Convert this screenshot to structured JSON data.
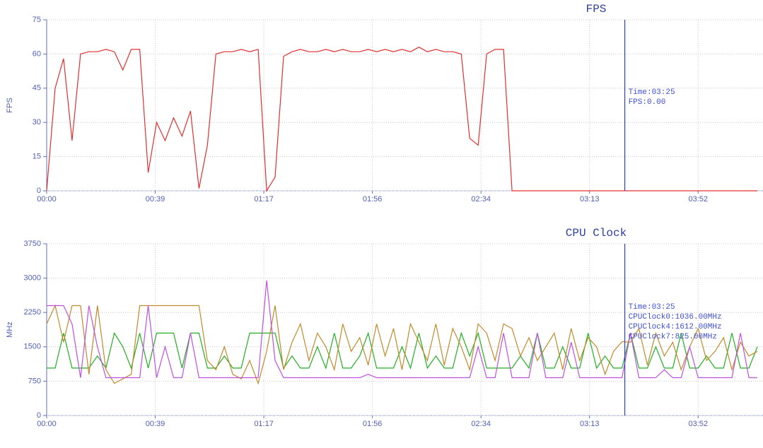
{
  "chart_data": [
    {
      "type": "line",
      "title": "FPS",
      "ylabel": "FPS",
      "x": [
        0,
        3,
        6,
        9,
        12,
        15,
        18,
        21,
        24,
        27,
        30,
        33,
        36,
        39,
        42,
        45,
        48,
        51,
        54,
        57,
        60,
        63,
        66,
        69,
        72,
        75,
        78,
        81,
        84,
        87,
        90,
        93,
        96,
        99,
        102,
        105,
        108,
        111,
        114,
        117,
        120,
        123,
        126,
        129,
        132,
        135,
        138,
        141,
        144,
        147,
        150,
        153,
        156,
        159,
        162,
        165,
        168,
        171,
        174,
        177,
        180,
        183,
        186,
        189,
        192,
        195,
        198,
        201,
        204,
        207,
        210,
        213,
        216,
        219,
        222,
        225,
        228,
        231,
        234,
        237,
        240,
        243,
        246,
        249,
        252
      ],
      "series": [
        {
          "color": "#e03030",
          "values": [
            0,
            45,
            58,
            22,
            60,
            61,
            61,
            62,
            61,
            53,
            62,
            62,
            8,
            30,
            22,
            32,
            24,
            35,
            1,
            20,
            60,
            61,
            61,
            62,
            61,
            62,
            0,
            6,
            59,
            61,
            62,
            61,
            61,
            62,
            61,
            62,
            61,
            61,
            62,
            61,
            62,
            61,
            62,
            61,
            63,
            61,
            62,
            61,
            61,
            60,
            23,
            20,
            60,
            62,
            62,
            0,
            0,
            0,
            0,
            0,
            0,
            0,
            0,
            0,
            0,
            0,
            0,
            0,
            0,
            0,
            0,
            0,
            0,
            0,
            0,
            0,
            0,
            0,
            0,
            0,
            0,
            0,
            0,
            0,
            0
          ]
        }
      ],
      "xlim": [
        0,
        254
      ],
      "ylim": [
        0,
        75
      ],
      "xticks": [
        {
          "value": 0,
          "label": "00:00"
        },
        {
          "value": 38.5,
          "label": "00:39"
        },
        {
          "value": 77,
          "label": "01:17"
        },
        {
          "value": 115.5,
          "label": "01:56"
        },
        {
          "value": 154,
          "label": "02:34"
        },
        {
          "value": 192.5,
          "label": "03:13"
        },
        {
          "value": 231,
          "label": "03:52"
        }
      ],
      "yticks": [
        0,
        15,
        30,
        45,
        60,
        75
      ],
      "grid": true,
      "cursor_x": 205,
      "annotations": [
        "Time:03:25",
        "FPS:0.00"
      ]
    },
    {
      "type": "line",
      "title": "CPU Clock",
      "ylabel": "MHz",
      "x": [
        0,
        3,
        6,
        9,
        12,
        15,
        18,
        21,
        24,
        27,
        30,
        33,
        36,
        39,
        42,
        45,
        48,
        51,
        54,
        57,
        60,
        63,
        66,
        69,
        72,
        75,
        78,
        81,
        84,
        87,
        90,
        93,
        96,
        99,
        102,
        105,
        108,
        111,
        114,
        117,
        120,
        123,
        126,
        129,
        132,
        135,
        138,
        141,
        144,
        147,
        150,
        153,
        156,
        159,
        162,
        165,
        168,
        171,
        174,
        177,
        180,
        183,
        186,
        189,
        192,
        195,
        198,
        201,
        204,
        207,
        210,
        213,
        216,
        219,
        222,
        225,
        228,
        231,
        234,
        237,
        240,
        243,
        246,
        249,
        252
      ],
      "series": [
        {
          "color": "#20b020",
          "values": [
            1036,
            1036,
            1800,
            1036,
            1036,
            1036,
            1300,
            1036,
            1800,
            1500,
            1036,
            1800,
            1036,
            1800,
            1800,
            1800,
            1036,
            1800,
            1800,
            1036,
            1036,
            1300,
            1036,
            1036,
            1800,
            1800,
            1800,
            1800,
            1036,
            1300,
            1036,
            1036,
            1500,
            1036,
            1800,
            1036,
            1036,
            1300,
            1800,
            1036,
            1036,
            1036,
            1500,
            1036,
            1800,
            1036,
            1300,
            1036,
            1036,
            1800,
            1300,
            1800,
            1036,
            1036,
            1036,
            1036,
            1300,
            1036,
            1800,
            1036,
            1036,
            1500,
            1036,
            1036,
            1800,
            1036,
            1300,
            1036,
            1036,
            1800,
            1036,
            1036,
            1500,
            1036,
            1036,
            1800,
            1036,
            1036,
            1300,
            1036,
            1036,
            1800,
            1036,
            1036,
            1500
          ]
        },
        {
          "color": "#c08a2a",
          "values": [
            2000,
            2400,
            1600,
            2400,
            2400,
            900,
            2400,
            1000,
            700,
            800,
            900,
            2400,
            2400,
            2400,
            2400,
            2400,
            2400,
            2400,
            2400,
            1200,
            1000,
            1500,
            900,
            800,
            1200,
            700,
            1400,
            2400,
            1000,
            1600,
            2000,
            1200,
            1800,
            1500,
            1000,
            2000,
            1400,
            1700,
            1100,
            2000,
            1300,
            1900,
            1000,
            2000,
            1600,
            1200,
            2000,
            1100,
            1900,
            1500,
            1000,
            2000,
            1800,
            1200,
            2000,
            1900,
            1300,
            1700,
            1200,
            1500,
            1800,
            1000,
            1900,
            1200,
            1700,
            1500,
            900,
            1400,
            1612,
            1600,
            1900,
            1100,
            1800,
            1300,
            1600,
            1000,
            1500,
            1900,
            1200,
            1400,
            1700,
            1000,
            1600,
            1300,
            1400
          ]
        },
        {
          "color": "#c050e0",
          "values": [
            2400,
            2400,
            2400,
            2000,
            825,
            2400,
            1500,
            825,
            825,
            825,
            825,
            825,
            2400,
            825,
            1500,
            825,
            825,
            1800,
            825,
            825,
            825,
            825,
            825,
            825,
            825,
            825,
            2950,
            1200,
            825,
            825,
            825,
            825,
            825,
            825,
            825,
            825,
            825,
            825,
            900,
            825,
            825,
            825,
            825,
            825,
            825,
            825,
            825,
            825,
            825,
            825,
            825,
            1500,
            825,
            825,
            1800,
            825,
            825,
            825,
            1800,
            825,
            825,
            825,
            1600,
            825,
            825,
            825,
            825,
            825,
            825,
            1800,
            825,
            825,
            825,
            1000,
            825,
            825,
            1500,
            825,
            825,
            825,
            825,
            825,
            1800,
            825,
            825
          ]
        }
      ],
      "xlim": [
        0,
        254
      ],
      "ylim": [
        0,
        3750
      ],
      "xticks": [
        {
          "value": 0,
          "label": "00:00"
        },
        {
          "value": 38.5,
          "label": "00:39"
        },
        {
          "value": 77,
          "label": "01:17"
        },
        {
          "value": 115.5,
          "label": "01:56"
        },
        {
          "value": 154,
          "label": "02:34"
        },
        {
          "value": 192.5,
          "label": "03:13"
        },
        {
          "value": 231,
          "label": "03:52"
        }
      ],
      "yticks": [
        0,
        750,
        1500,
        2250,
        3000,
        3750
      ],
      "grid": true,
      "cursor_x": 205,
      "annotations": [
        "Time:03:25",
        "CPUClock0:1036.00MHz",
        "CPUClock4:1612.00MHz",
        "CPUClock7:825.00MHz"
      ]
    }
  ]
}
